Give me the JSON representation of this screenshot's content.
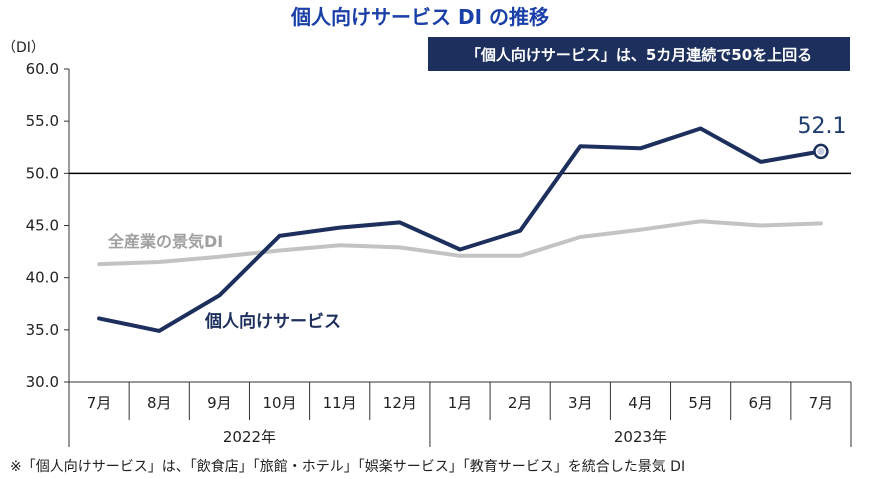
{
  "chart_data": {
    "type": "line",
    "title": "個人向けサービス DI の推移",
    "ylabel": "（DI）",
    "ylim": [
      30,
      60
    ],
    "yticks": [
      "60.0",
      "55.0",
      "50.0",
      "45.0",
      "40.0",
      "35.0",
      "30.0"
    ],
    "ytick_values": [
      60,
      55,
      50,
      45,
      40,
      35,
      30
    ],
    "reference_line": 50,
    "categories": [
      "7月",
      "8月",
      "9月",
      "10月",
      "11月",
      "12月",
      "1月",
      "2月",
      "3月",
      "4月",
      "5月",
      "6月",
      "7月"
    ],
    "year_groups": [
      {
        "label": "2022年",
        "count": 6
      },
      {
        "label": "2023年",
        "count": 7
      }
    ],
    "series": [
      {
        "name": "個人向けサービス",
        "color": "#1d2f5c",
        "values": [
          36.1,
          34.9,
          38.3,
          44.0,
          44.8,
          45.3,
          42.7,
          44.5,
          52.6,
          52.4,
          54.3,
          51.1,
          52.1
        ]
      },
      {
        "name": "全産業の景気DI",
        "color": "#c3c3c3",
        "values": [
          41.3,
          41.5,
          42.0,
          42.6,
          43.1,
          42.9,
          42.1,
          42.1,
          43.9,
          44.6,
          45.4,
          45.0,
          45.2
        ]
      }
    ],
    "callout": "52.1",
    "banner": "「個人向けサービス」は、5カ月連続で50を上回る",
    "footnote": "※「個人向けサービス」は、「飲食店」「旅館・ホテル」「娯楽サービス」「教育サービス」を統合した景気 DI"
  },
  "colors": {
    "title": "#1a3fa8",
    "banner_bg": "#1d2f5c",
    "main_line": "#1d2f5c",
    "gray_line": "#c3c3c3"
  }
}
